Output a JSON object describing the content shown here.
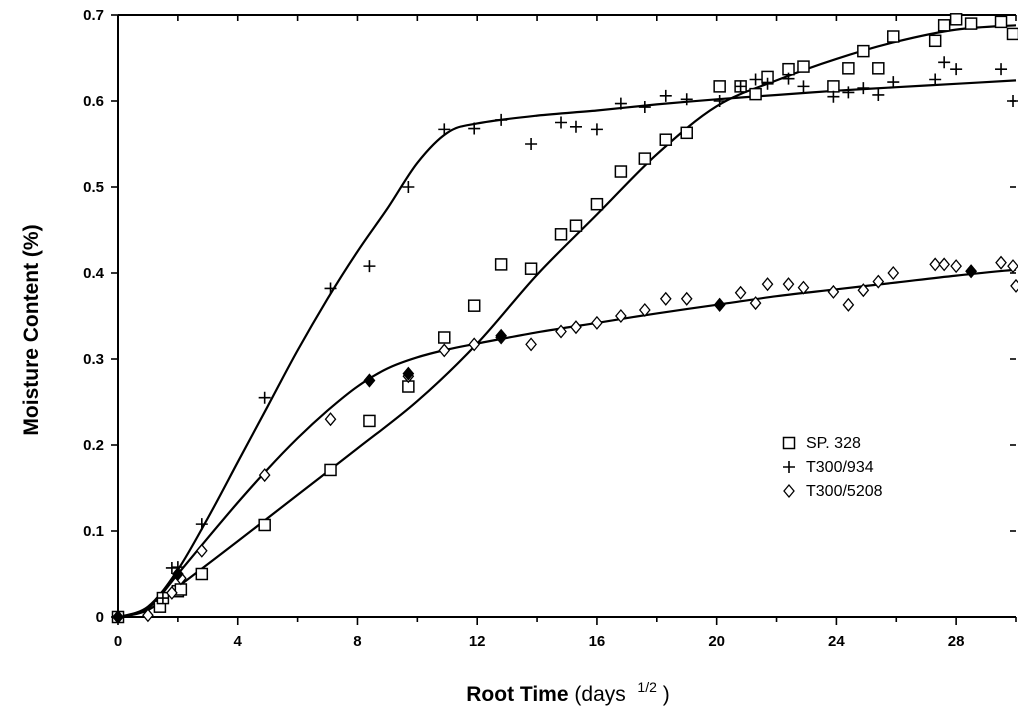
{
  "chart_data": {
    "type": "scatter",
    "title": "",
    "xlabel": {
      "main": "Root Time",
      "unit_prefix": "(days ",
      "unit_sup": "1/2",
      "unit_suffix": ")"
    },
    "ylabel": "Moisture Content (%)",
    "xlim": [
      0,
      30
    ],
    "ylim": [
      0,
      0.7
    ],
    "x_ticks": [
      "0",
      "4",
      "8",
      "12",
      "16",
      "20",
      "24",
      "28"
    ],
    "y_ticks": [
      "0",
      "0.1",
      "0.2",
      "0.3",
      "0.4",
      "0.5",
      "0.6",
      "0.7"
    ],
    "x_minor_step": 2,
    "grid": false,
    "legend_position": "right",
    "series": [
      {
        "name": "SP. 328",
        "marker": "square",
        "points": [
          [
            0,
            0
          ],
          [
            1.4,
            0.012
          ],
          [
            1.5,
            0.022
          ],
          [
            2,
            0.03
          ],
          [
            2.1,
            0.032
          ],
          [
            2.8,
            0.05
          ],
          [
            4.9,
            0.107
          ],
          [
            7.1,
            0.171
          ],
          [
            8.4,
            0.228
          ],
          [
            9.7,
            0.268
          ],
          [
            10.9,
            0.325
          ],
          [
            11.9,
            0.362
          ],
          [
            12.8,
            0.41
          ],
          [
            13.8,
            0.405
          ],
          [
            14.8,
            0.445
          ],
          [
            15.3,
            0.455
          ],
          [
            16,
            0.48
          ],
          [
            16.8,
            0.518
          ],
          [
            17.6,
            0.533
          ],
          [
            18.3,
            0.555
          ],
          [
            19,
            0.563
          ],
          [
            20.1,
            0.617
          ],
          [
            20.8,
            0.617
          ],
          [
            21.3,
            0.608
          ],
          [
            21.7,
            0.628
          ],
          [
            22.4,
            0.637
          ],
          [
            22.9,
            0.64
          ],
          [
            23.9,
            0.617
          ],
          [
            24.4,
            0.638
          ],
          [
            24.9,
            0.658
          ],
          [
            25.4,
            0.638
          ],
          [
            25.9,
            0.675
          ],
          [
            27.3,
            0.67
          ],
          [
            27.6,
            0.688
          ],
          [
            28,
            0.695
          ],
          [
            28.5,
            0.69
          ],
          [
            29.5,
            0.692
          ],
          [
            29.9,
            0.678
          ]
        ],
        "fit": [
          [
            0,
            0
          ],
          [
            1,
            0.008
          ],
          [
            2,
            0.035
          ],
          [
            4,
            0.088
          ],
          [
            6,
            0.142
          ],
          [
            8,
            0.196
          ],
          [
            10,
            0.251
          ],
          [
            12,
            0.318
          ],
          [
            14,
            0.398
          ],
          [
            16,
            0.468
          ],
          [
            18,
            0.538
          ],
          [
            20,
            0.594
          ],
          [
            22,
            0.624
          ],
          [
            24,
            0.649
          ],
          [
            26,
            0.669
          ],
          [
            28,
            0.683
          ],
          [
            30,
            0.688
          ]
        ]
      },
      {
        "name": "T300/934",
        "marker": "plus",
        "points": [
          [
            0,
            0
          ],
          [
            1.5,
            0.022
          ],
          [
            1.8,
            0.057
          ],
          [
            2,
            0.058
          ],
          [
            2.8,
            0.108
          ],
          [
            4.9,
            0.255
          ],
          [
            7.1,
            0.382
          ],
          [
            8.4,
            0.408
          ],
          [
            9.7,
            0.5
          ],
          [
            10.9,
            0.567
          ],
          [
            11.9,
            0.568
          ],
          [
            12.8,
            0.578
          ],
          [
            13.8,
            0.55
          ],
          [
            14.8,
            0.575
          ],
          [
            15.3,
            0.57
          ],
          [
            16,
            0.567
          ],
          [
            16.8,
            0.597
          ],
          [
            17.6,
            0.593
          ],
          [
            18.3,
            0.606
          ],
          [
            19,
            0.602
          ],
          [
            20.1,
            0.6
          ],
          [
            20.8,
            0.617
          ],
          [
            21.3,
            0.625
          ],
          [
            21.7,
            0.62
          ],
          [
            22.4,
            0.626
          ],
          [
            22.9,
            0.617
          ],
          [
            23.9,
            0.605
          ],
          [
            24.4,
            0.61
          ],
          [
            24.9,
            0.615
          ],
          [
            25.4,
            0.607
          ],
          [
            25.9,
            0.622
          ],
          [
            27.3,
            0.625
          ],
          [
            27.6,
            0.645
          ],
          [
            28,
            0.637
          ],
          [
            29.5,
            0.637
          ],
          [
            29.9,
            0.6
          ]
        ],
        "fit": [
          [
            0,
            0
          ],
          [
            1,
            0.012
          ],
          [
            2,
            0.055
          ],
          [
            3,
            0.115
          ],
          [
            4,
            0.18
          ],
          [
            5,
            0.245
          ],
          [
            6,
            0.31
          ],
          [
            7,
            0.37
          ],
          [
            8,
            0.425
          ],
          [
            9,
            0.475
          ],
          [
            10,
            0.528
          ],
          [
            11,
            0.563
          ],
          [
            12,
            0.574
          ],
          [
            14,
            0.583
          ],
          [
            16,
            0.589
          ],
          [
            18,
            0.596
          ],
          [
            20,
            0.602
          ],
          [
            22,
            0.607
          ],
          [
            24,
            0.612
          ],
          [
            26,
            0.616
          ],
          [
            28,
            0.62
          ],
          [
            30,
            0.624
          ]
        ]
      },
      {
        "name": "T300/5208",
        "marker": "diamond",
        "points": [
          [
            0,
            0
          ],
          [
            1,
            0.002
          ],
          [
            1.8,
            0.028
          ],
          [
            2.1,
            0.045
          ],
          [
            2.8,
            0.077
          ],
          [
            4.9,
            0.165
          ],
          [
            7.1,
            0.23
          ],
          [
            8.4,
            0.275
          ],
          [
            9.7,
            0.28
          ],
          [
            10.9,
            0.31
          ],
          [
            11.9,
            0.317
          ],
          [
            12.8,
            0.325
          ],
          [
            13.8,
            0.317
          ],
          [
            14.8,
            0.332
          ],
          [
            15.3,
            0.337
          ],
          [
            16,
            0.342
          ],
          [
            16.8,
            0.35
          ],
          [
            17.6,
            0.357
          ],
          [
            18.3,
            0.37
          ],
          [
            19,
            0.37
          ],
          [
            20.1,
            0.363
          ],
          [
            20.8,
            0.377
          ],
          [
            21.3,
            0.365
          ],
          [
            21.7,
            0.387
          ],
          [
            22.4,
            0.387
          ],
          [
            22.9,
            0.383
          ],
          [
            23.9,
            0.378
          ],
          [
            24.4,
            0.363
          ],
          [
            24.9,
            0.38
          ],
          [
            25.4,
            0.39
          ],
          [
            25.9,
            0.4
          ],
          [
            27.3,
            0.41
          ],
          [
            27.6,
            0.41
          ],
          [
            28,
            0.408
          ],
          [
            28.5,
            0.402
          ],
          [
            29.5,
            0.412
          ],
          [
            29.9,
            0.408
          ],
          [
            30,
            0.385
          ]
        ],
        "highlighted_points": [
          [
            0,
            0
          ],
          [
            2,
            0.05
          ],
          [
            8.4,
            0.275
          ],
          [
            9.7,
            0.283
          ],
          [
            12.8,
            0.327
          ],
          [
            20.1,
            0.363
          ],
          [
            28.5,
            0.402
          ]
        ],
        "fit": [
          [
            0,
            0
          ],
          [
            1,
            0.01
          ],
          [
            2,
            0.05
          ],
          [
            3,
            0.092
          ],
          [
            4,
            0.133
          ],
          [
            5,
            0.172
          ],
          [
            6,
            0.208
          ],
          [
            7,
            0.24
          ],
          [
            8,
            0.268
          ],
          [
            9,
            0.289
          ],
          [
            10,
            0.302
          ],
          [
            11,
            0.311
          ],
          [
            12,
            0.318
          ],
          [
            14,
            0.331
          ],
          [
            16,
            0.342
          ],
          [
            18,
            0.353
          ],
          [
            20,
            0.363
          ],
          [
            22,
            0.373
          ],
          [
            24,
            0.381
          ],
          [
            26,
            0.389
          ],
          [
            28,
            0.397
          ],
          [
            30,
            0.404
          ]
        ]
      }
    ]
  }
}
